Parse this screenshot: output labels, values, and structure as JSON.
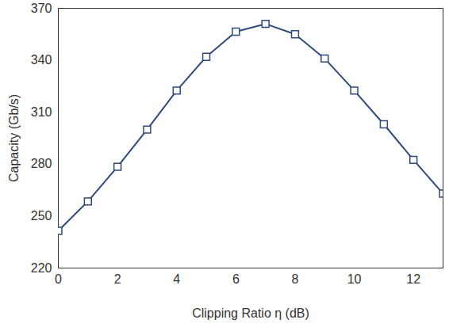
{
  "chart_data": {
    "type": "line",
    "x_label": "Clipping Ratio η (dB)",
    "y_label": "Capacity (Gb/s)",
    "x": [
      0,
      1,
      2,
      3,
      4,
      5,
      6,
      7,
      8,
      9,
      10,
      11,
      12,
      13
    ],
    "series": [
      {
        "name": "Capacity",
        "color": "#2f4a7f",
        "marker": "square",
        "line_style": "solid",
        "values": [
          241.5,
          258.5,
          278.5,
          300,
          322.5,
          342,
          356.5,
          361,
          355,
          341,
          322.5,
          303,
          282.5,
          263
        ]
      }
    ],
    "xlim": [
      0,
      13
    ],
    "xticks": [
      0,
      2,
      4,
      6,
      8,
      10,
      12
    ],
    "ylim": [
      220,
      370
    ],
    "yticks": [
      220,
      250,
      280,
      310,
      340,
      370
    ],
    "grid": false
  }
}
